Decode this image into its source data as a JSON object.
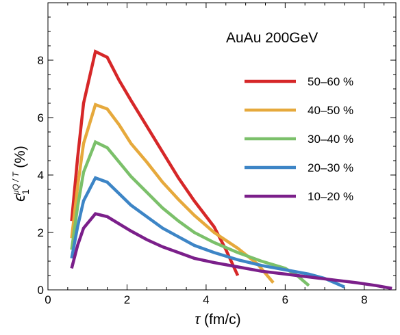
{
  "chart_data": {
    "type": "line",
    "annotation": "AuAu 200GeV",
    "xlabel": {
      "symbol": "τ",
      "unit": " (fm/c)"
    },
    "ylabel": {
      "symbol": "ϵ",
      "subscript": "1",
      "superscript": "μQ / T",
      "unit": " (%)"
    },
    "xlim": [
      0,
      8.8
    ],
    "ylim": [
      0,
      10
    ],
    "x_ticks": [
      0,
      2,
      4,
      6,
      8
    ],
    "x_tick_labels": [
      "0",
      "2",
      "4",
      "6",
      "8"
    ],
    "y_ticks": [
      0,
      2,
      4,
      6,
      8
    ],
    "y_tick_labels": [
      "0",
      "2",
      "4",
      "6",
      "8"
    ],
    "grid": false,
    "legend_position": "right",
    "series": [
      {
        "name": "50–60 %",
        "color": "#d62728",
        "x": [
          0.6,
          0.75,
          0.9,
          1.2,
          1.5,
          1.8,
          2.1,
          2.5,
          2.9,
          3.3,
          3.7,
          4.2,
          4.5,
          4.8
        ],
        "y": [
          2.4,
          4.6,
          6.5,
          8.3,
          8.1,
          7.3,
          6.6,
          5.7,
          4.8,
          3.9,
          3.1,
          2.2,
          1.4,
          0.5
        ]
      },
      {
        "name": "40–50 %",
        "color": "#e6a93c",
        "x": [
          0.6,
          0.75,
          0.9,
          1.2,
          1.5,
          1.8,
          2.1,
          2.5,
          2.9,
          3.3,
          3.7,
          4.2,
          4.8,
          5.3,
          5.7
        ],
        "y": [
          1.8,
          3.6,
          5.1,
          6.45,
          6.3,
          5.75,
          5.1,
          4.45,
          3.75,
          3.15,
          2.6,
          2.0,
          1.45,
          0.9,
          0.25
        ]
      },
      {
        "name": "30–40 %",
        "color": "#7bc06a",
        "x": [
          0.6,
          0.75,
          0.9,
          1.2,
          1.5,
          1.8,
          2.1,
          2.5,
          2.9,
          3.3,
          3.7,
          4.2,
          4.8,
          5.4,
          6.0,
          6.3,
          6.6
        ],
        "y": [
          1.4,
          2.9,
          4.1,
          5.15,
          4.95,
          4.45,
          3.95,
          3.4,
          2.85,
          2.4,
          2.0,
          1.65,
          1.3,
          1.0,
          0.75,
          0.5,
          0.15
        ]
      },
      {
        "name": "20–30 %",
        "color": "#3d85c6",
        "x": [
          0.6,
          0.75,
          0.9,
          1.2,
          1.5,
          1.8,
          2.1,
          2.5,
          2.9,
          3.3,
          3.7,
          4.2,
          4.8,
          5.4,
          6.0,
          6.6,
          7.0,
          7.5
        ],
        "y": [
          1.1,
          2.2,
          3.1,
          3.9,
          3.75,
          3.35,
          2.95,
          2.55,
          2.15,
          1.85,
          1.55,
          1.3,
          1.05,
          0.85,
          0.7,
          0.55,
          0.4,
          0.1
        ]
      },
      {
        "name": "10–20 %",
        "color": "#7b1f8a",
        "x": [
          0.6,
          0.75,
          0.9,
          1.2,
          1.5,
          1.8,
          2.1,
          2.5,
          2.9,
          3.3,
          3.7,
          4.2,
          4.8,
          5.4,
          6.0,
          6.6,
          7.2,
          7.8,
          8.3,
          8.7
        ],
        "y": [
          0.75,
          1.55,
          2.15,
          2.65,
          2.55,
          2.3,
          2.05,
          1.75,
          1.5,
          1.3,
          1.1,
          0.95,
          0.8,
          0.65,
          0.55,
          0.45,
          0.35,
          0.25,
          0.15,
          0.05
        ]
      }
    ]
  }
}
